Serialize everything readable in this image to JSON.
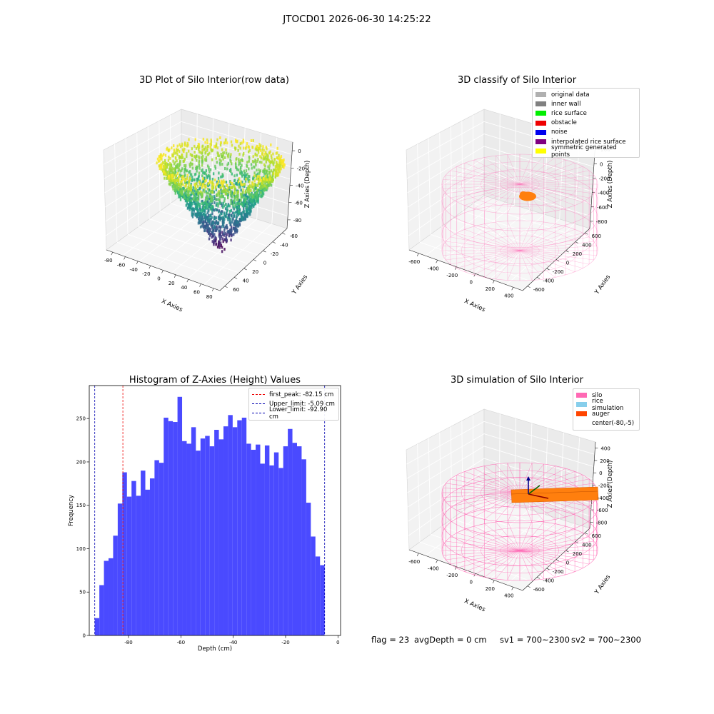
{
  "figure": {
    "suptitle": "JTOCD01 2026-06-30 14:25:22"
  },
  "panels": {
    "raw": {
      "title": "3D Plot of Silo Interior(row data)",
      "xlabel": "X Axies",
      "ylabel": "Y Axies",
      "zlabel": "Z Axies (Depth)",
      "xticks": [
        "-80",
        "-60",
        "-40",
        "-20",
        "0",
        "20",
        "40",
        "60",
        "80"
      ],
      "yticks": [
        "-60",
        "-40",
        "-20",
        "0",
        "20",
        "40",
        "60"
      ],
      "zticks": [
        "0",
        "-20",
        "-40",
        "-60",
        "-80"
      ]
    },
    "classify": {
      "title": "3D classify of Silo Interior",
      "xlabel": "X Axies",
      "ylabel": "Y Axies",
      "zlabel": "Z Axies (Depth)",
      "xticks": [
        "-600",
        "-400",
        "-200",
        "0",
        "200",
        "400"
      ],
      "yticks": [
        "600",
        "400",
        "200",
        "0",
        "-200",
        "-400",
        "-600"
      ],
      "zticks": [
        "200",
        "0",
        "-200",
        "-400",
        "-600",
        "-800"
      ],
      "legend": [
        {
          "label": "original data",
          "color": "#b0b0b0"
        },
        {
          "label": "inner wall",
          "color": "#808080"
        },
        {
          "label": "rice surface",
          "color": "#00ee00"
        },
        {
          "label": "obstacle",
          "color": "#ee0000"
        },
        {
          "label": "noise",
          "color": "#0000ee"
        },
        {
          "label": "interpolated rice surface",
          "color": "#800080"
        },
        {
          "label": "symmetric generated points",
          "color": "#ffff00"
        }
      ]
    },
    "simulation": {
      "title": "3D simulation of Silo Interior",
      "xlabel": "X Axies",
      "ylabel": "Y Axies",
      "zlabel": "Z Axies (Depth)",
      "xticks": [
        "-600",
        "-400",
        "-200",
        "0",
        "200",
        "400"
      ],
      "yticks": [
        "600",
        "400",
        "200",
        "0",
        "-200",
        "-400",
        "-600"
      ],
      "zticks": [
        "400",
        "200",
        "0",
        "-200",
        "-400",
        "-600",
        "-800"
      ],
      "legend": [
        {
          "label": "silo",
          "color": "#ff69b4"
        },
        {
          "label": "rice simulation",
          "color": "#87ceeb"
        },
        {
          "label": "auger",
          "color": "#ff4500"
        },
        {
          "label": "center(-80,-5)",
          "color": "#ffffff"
        }
      ]
    },
    "status": {
      "flag": "flag = 23",
      "avg_depth": "avgDepth = 0 cm",
      "sv1": "sv1 = 700~2300",
      "sv2": "sv2 = 700~2300"
    }
  },
  "chart_data": {
    "type": "bar",
    "title": "Histogram of Z-Axies (Height) Values",
    "xlabel": "Depth (cm)",
    "ylabel": "Frequency",
    "xlim": [
      -95,
      1
    ],
    "ylim": [
      0,
      288
    ],
    "xticks": [
      -80,
      -60,
      -40,
      -20,
      0
    ],
    "yticks": [
      0,
      50,
      100,
      150,
      200,
      250
    ],
    "bin_start": -92.9,
    "bin_width": 1.756,
    "values": [
      20,
      58,
      86,
      89,
      115,
      152,
      188,
      160,
      178,
      161,
      190,
      168,
      181,
      202,
      199,
      251,
      247,
      246,
      275,
      224,
      221,
      240,
      213,
      227,
      230,
      218,
      237,
      226,
      241,
      254,
      240,
      248,
      251,
      221,
      214,
      220,
      198,
      219,
      196,
      211,
      193,
      218,
      238,
      222,
      218,
      203,
      153,
      114,
      91,
      81
    ],
    "bar_color": "#4a4aff",
    "lines": [
      {
        "label": "first_peak: -82.15 cm",
        "x": -82.15,
        "color": "#ee0000"
      },
      {
        "label": "Upper_limit: -5.09 cm",
        "x": -5.09,
        "color": "#0000b0"
      },
      {
        "label": "Lower_limit: -92.90 cm",
        "x": -92.9,
        "color": "#0000b0"
      }
    ],
    "legend_position": "top-right"
  }
}
